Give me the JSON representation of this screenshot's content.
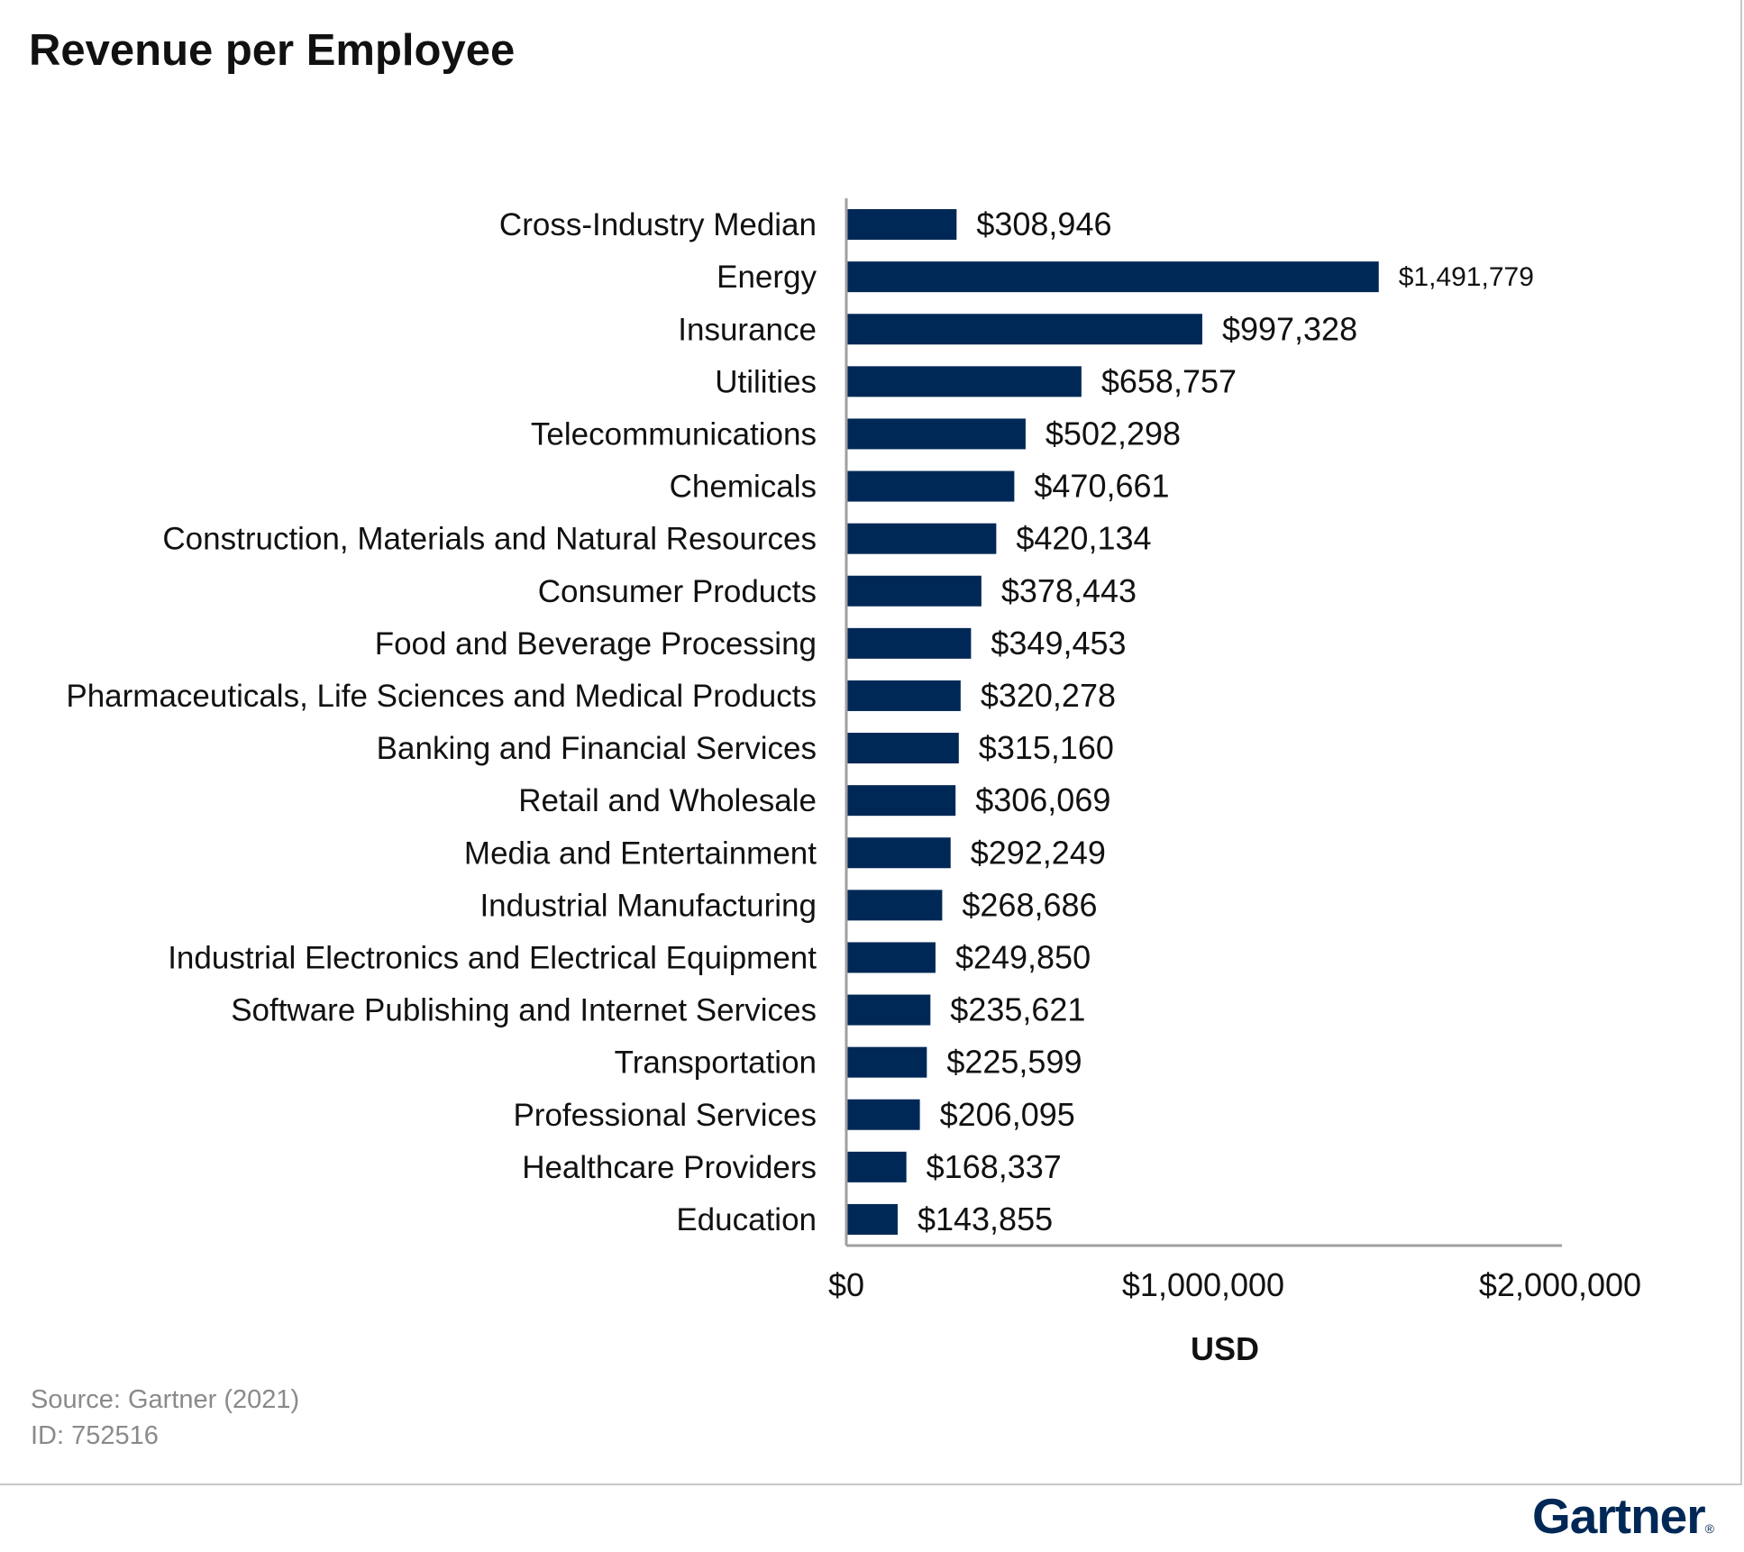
{
  "chart_data": {
    "type": "bar",
    "orientation": "horizontal",
    "title": "Revenue per Employee",
    "xlabel": "USD",
    "ylabel": "",
    "xlim": [
      0,
      2000000
    ],
    "x_ticks": [
      {
        "value": 0,
        "label": "$0"
      },
      {
        "value": 1000000,
        "label": "$1,000,000"
      },
      {
        "value": 2000000,
        "label": "$2,000,000"
      }
    ],
    "grid": false,
    "legend": "none",
    "bar_color": "#002856",
    "categories": [
      "Cross-Industry Median",
      "Energy",
      "Insurance",
      "Utilities",
      "Telecommunications",
      "Chemicals",
      "Construction, Materials and Natural Resources",
      "Consumer Products",
      "Food and Beverage Processing",
      "Pharmaceuticals, Life Sciences and Medical Products",
      "Banking and Financial Services",
      "Retail and Wholesale",
      "Media and Entertainment",
      "Industrial Manufacturing",
      "Industrial Electronics and Electrical Equipment",
      "Software Publishing and Internet Services",
      "Transportation",
      "Professional Services",
      "Healthcare Providers",
      "Education"
    ],
    "values": [
      308946,
      1491779,
      997328,
      658757,
      502298,
      470661,
      420134,
      378443,
      349453,
      320278,
      315160,
      306069,
      292249,
      268686,
      249850,
      235621,
      225599,
      206095,
      168337,
      143855
    ],
    "data_labels": [
      "$308,946",
      "$1,491,779",
      "$997,328",
      "$658,757",
      "$502,298",
      "$470,661",
      "$420,134",
      "$378,443",
      "$349,453",
      "$320,278",
      "$315,160",
      "$306,069",
      "$292,249",
      "$268,686",
      "$249,850",
      "$235,621",
      "$225,599",
      "$206,095",
      "$168,337",
      "$143,855"
    ]
  },
  "footer": {
    "source": "Source: Gartner (2021)",
    "id": "ID: 752516"
  },
  "branding": {
    "logo_text": "Gartner",
    "logo_mark": "®",
    "logo_color": "#002856"
  }
}
